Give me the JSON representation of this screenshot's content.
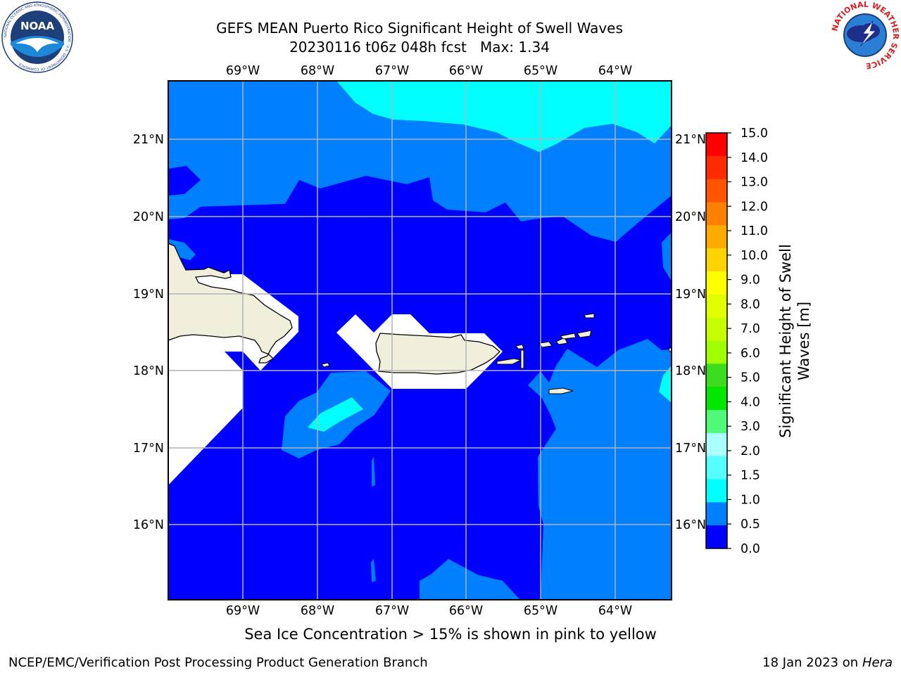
{
  "title": {
    "line1": "GEFS MEAN Puerto Rico Significant Height of Swell Waves",
    "line2": "20230116 t06z 048h fcst   Max: 1.34"
  },
  "logos": {
    "left": "noaa-logo",
    "left_text": "NOAA",
    "left_ring_text": "NATIONAL OCEANIC AND ATMOSPHERIC ADMINISTRATION · U.S. DEPARTMENT OF COMMERCE",
    "right": "nws-logo",
    "right_ring_text": "NATIONAL WEATHER SERVICE"
  },
  "map": {
    "lon_labels": [
      "69°W",
      "68°W",
      "67°W",
      "66°W",
      "65°W",
      "64°W"
    ],
    "lat_labels": [
      "21°N",
      "20°N",
      "19°N",
      "18°N",
      "17°N",
      "16°N"
    ],
    "grid": true,
    "field": "Significant Height of Swell Waves"
  },
  "colorbar": {
    "label": "Significant Height of Swell Waves [m]",
    "ticks": [
      "15.0",
      "14.0",
      "13.0",
      "12.0",
      "11.0",
      "10.0",
      "9.0",
      "8.0",
      "7.0",
      "6.0",
      "5.0",
      "4.0",
      "3.0",
      "2.0",
      "1.5",
      "1.0",
      "0.5",
      "0.0"
    ],
    "colors_top_to_bottom": [
      "#ff0000",
      "#ff2a00",
      "#ff5500",
      "#ff8000",
      "#ffaa00",
      "#ffd400",
      "#ffff00",
      "#e1ff00",
      "#c8ff00",
      "#a0ff00",
      "#3cdc1e",
      "#00e600",
      "#50fa78",
      "#aaffff",
      "#55ffff",
      "#00ffff",
      "#0080ff",
      "#0000ff"
    ]
  },
  "caption": "Sea Ice Concentration > 15% is shown in pink to yellow",
  "footer": {
    "left": "NCEP/EMC/Verification Post Processing Product Generation Branch",
    "right_prefix": "18 Jan 2023 on ",
    "right_host": "Hera"
  }
}
